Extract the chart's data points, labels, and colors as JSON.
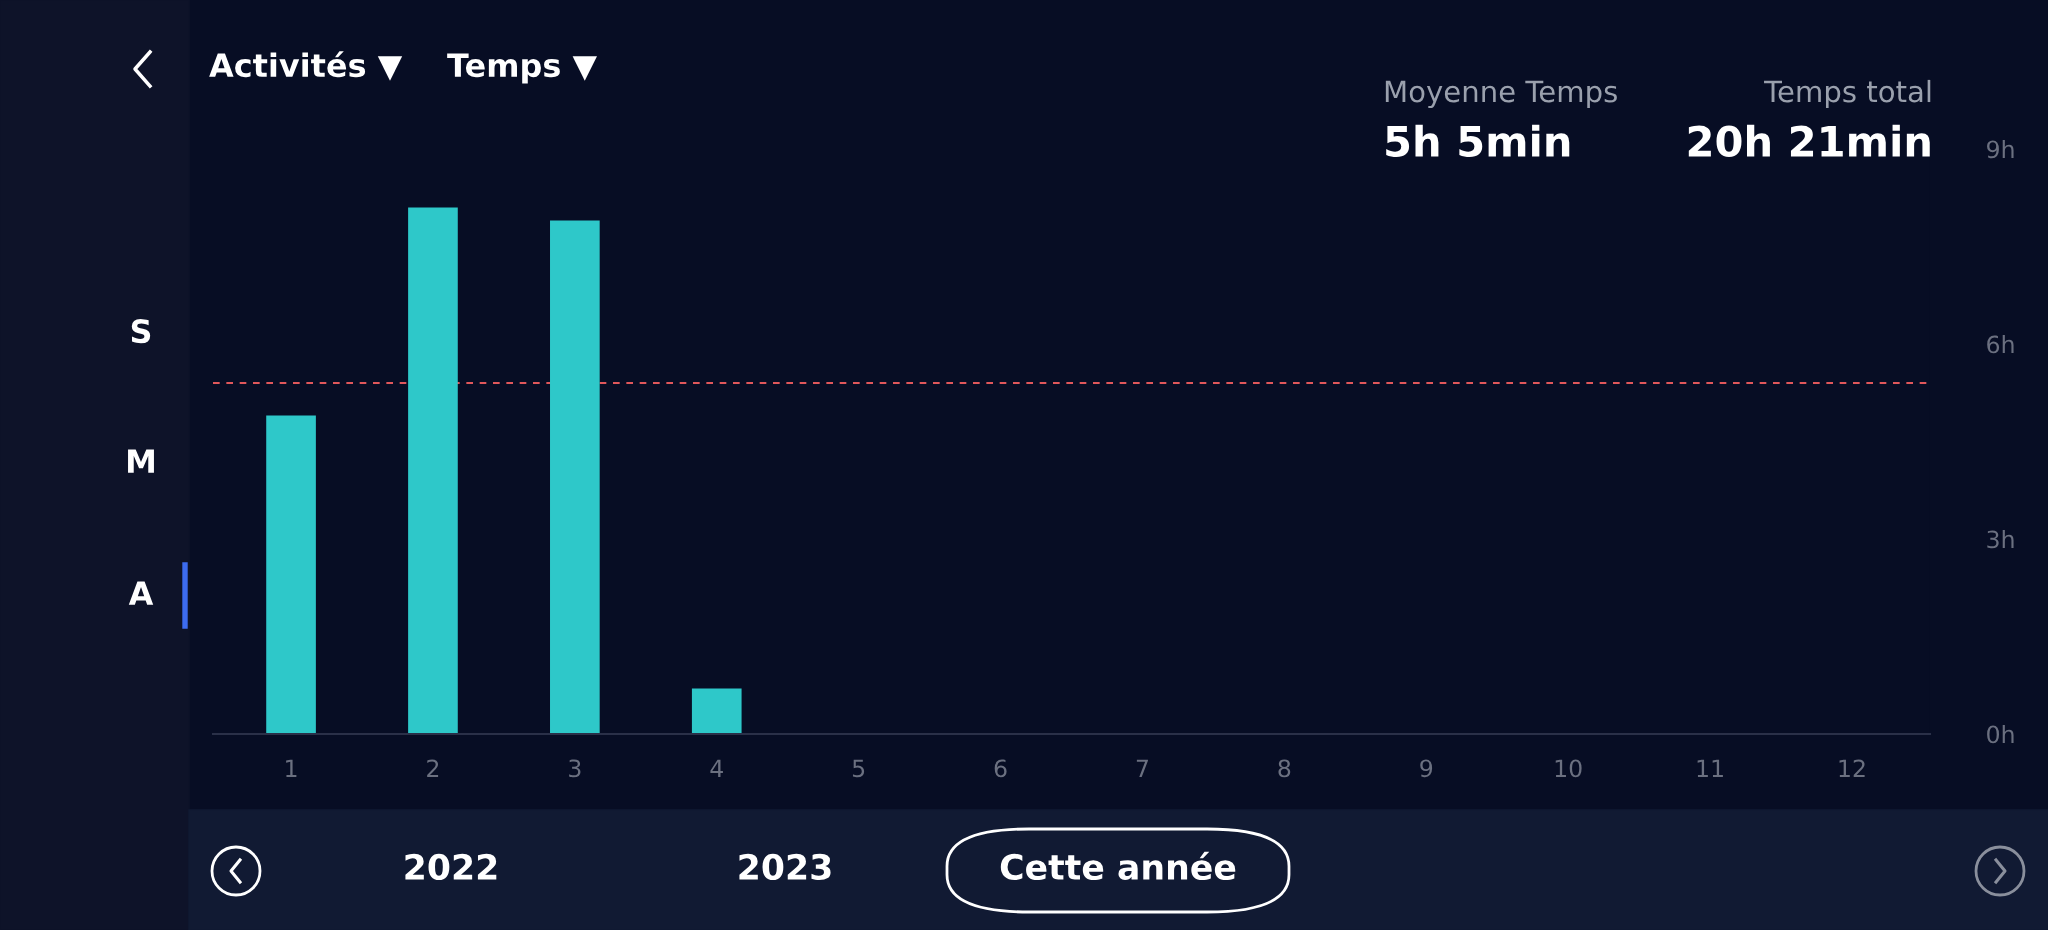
{
  "chart_data": {
    "type": "bar",
    "categories": [
      "1",
      "2",
      "3",
      "4",
      "5",
      "6",
      "7",
      "8",
      "9",
      "10",
      "11",
      "12"
    ],
    "values": [
      4.9,
      8.1,
      7.9,
      0.7,
      null,
      null,
      null,
      null,
      null,
      null,
      null,
      null
    ],
    "color": "#2ec8c9",
    "ylim": [
      0,
      9
    ],
    "yticks": [
      {
        "value": 0,
        "label": "0h"
      },
      {
        "value": 3,
        "label": "3h"
      },
      {
        "value": 6,
        "label": "6h"
      },
      {
        "value": 9,
        "label": "9h"
      }
    ],
    "ref_lines": [
      {
        "axis": "y",
        "value": 5.4,
        "color": "#e0575b",
        "line_style": "dashed"
      }
    ],
    "grid": false,
    "legend": false,
    "annotations": [
      "Activités ▼",
      "Temps ▼",
      "Moyenne Temps",
      "5h 5min",
      "Temps total",
      "20h 21min",
      "S",
      "M",
      "A",
      "2022",
      "2023",
      "Cette année"
    ]
  }
}
